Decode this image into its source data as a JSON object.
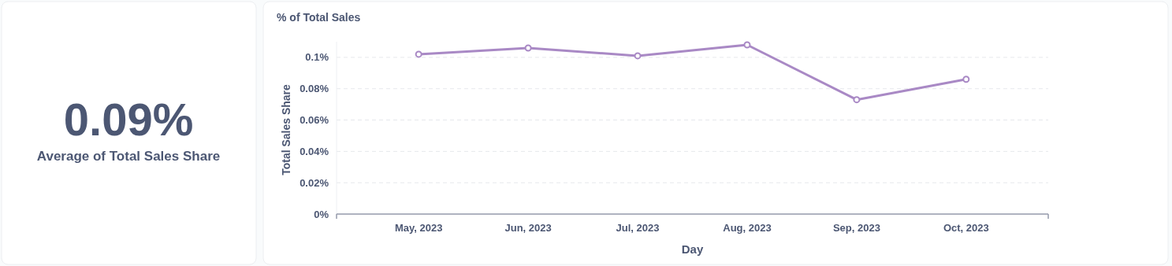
{
  "chart_data": [
    {
      "type": "other",
      "title": "0.09%",
      "subtitle": "Average of Total Sales Share"
    },
    {
      "type": "line",
      "title": "% of Total Sales",
      "xlabel": "Day",
      "ylabel": "Total Sales Share",
      "categories": [
        "May, 2023",
        "Jun, 2023",
        "Jul, 2023",
        "Aug, 2023",
        "Sep, 2023",
        "Oct, 2023"
      ],
      "series": [
        {
          "color": "#a989c5",
          "values": [
            0.102,
            0.106,
            0.101,
            0.108,
            0.073,
            0.086
          ]
        }
      ],
      "yticks": [
        {
          "value": 0,
          "label": "0%"
        },
        {
          "value": 0.02,
          "label": "0.02%"
        },
        {
          "value": 0.04,
          "label": "0.04%"
        },
        {
          "value": 0.06,
          "label": "0.06%"
        },
        {
          "value": 0.08,
          "label": "0.08%"
        },
        {
          "value": 0.1,
          "label": "0.1%"
        }
      ],
      "ylim": [
        0,
        0.11
      ],
      "grid": "y",
      "marker": "circle",
      "line_style": "solid"
    }
  ]
}
